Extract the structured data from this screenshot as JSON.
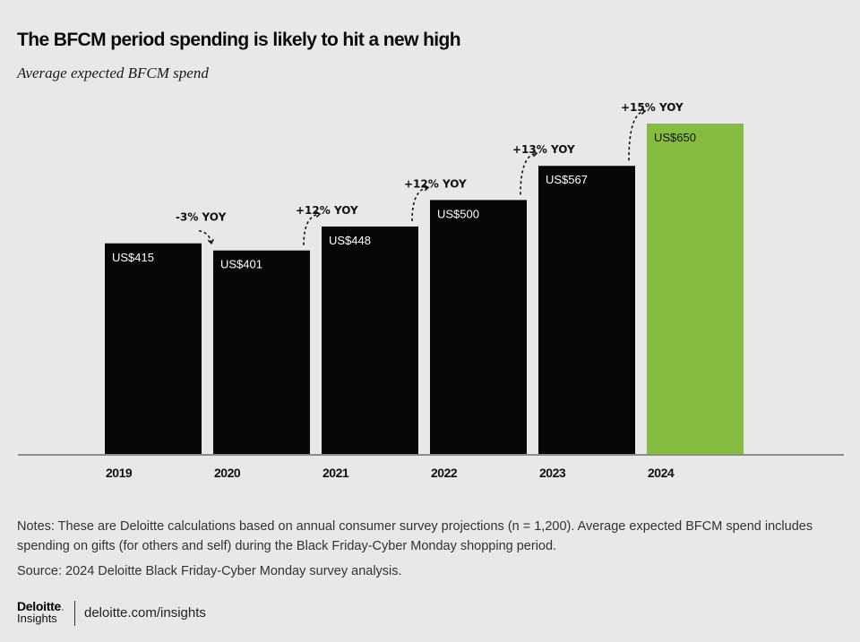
{
  "header": {
    "title": "The BFCM period spending is likely to hit a new high",
    "subtitle": "Average expected BFCM spend"
  },
  "chart_data": {
    "type": "bar",
    "title": "The BFCM period spending is likely to hit a new high",
    "subtitle": "Average expected BFCM spend",
    "xlabel": "",
    "ylabel": "",
    "categories": [
      "2019",
      "2020",
      "2021",
      "2022",
      "2023",
      "2024"
    ],
    "values": [
      415,
      401,
      448,
      500,
      567,
      650
    ],
    "value_labels": [
      "US$415",
      "US$401",
      "US$448",
      "US$500",
      "US$567",
      "US$650"
    ],
    "yoy_annotations": [
      null,
      "-3% YOY",
      "+12% YOY",
      "+12% YOY",
      "+13% YOY",
      "+15% YOY"
    ],
    "yoy_direction": [
      null,
      "down",
      "up",
      "up",
      "up",
      "up"
    ],
    "ylim": [
      0,
      700
    ],
    "grid": false,
    "legend": "none",
    "colors": {
      "default_bar": "#050708",
      "highlight_bar": "#86bc3f",
      "highlight_index": 5,
      "axis": "#8c8c8c",
      "label_on_dark": "#ffffff",
      "label_on_highlight": "#111111"
    }
  },
  "footer": {
    "notes": "Notes: These are Deloitte calculations based on annual consumer survey projections (n = 1,200). Average expected BFCM spend includes spending on gifts (for others and self) during the Black Friday-Cyber Monday shopping period.",
    "source": "Source: 2024 Deloitte Black Friday-Cyber Monday survey analysis.",
    "logo_brand": "Deloitte",
    "logo_dot": ".",
    "logo_sub": "Insights",
    "url": "deloitte.com/insights"
  }
}
